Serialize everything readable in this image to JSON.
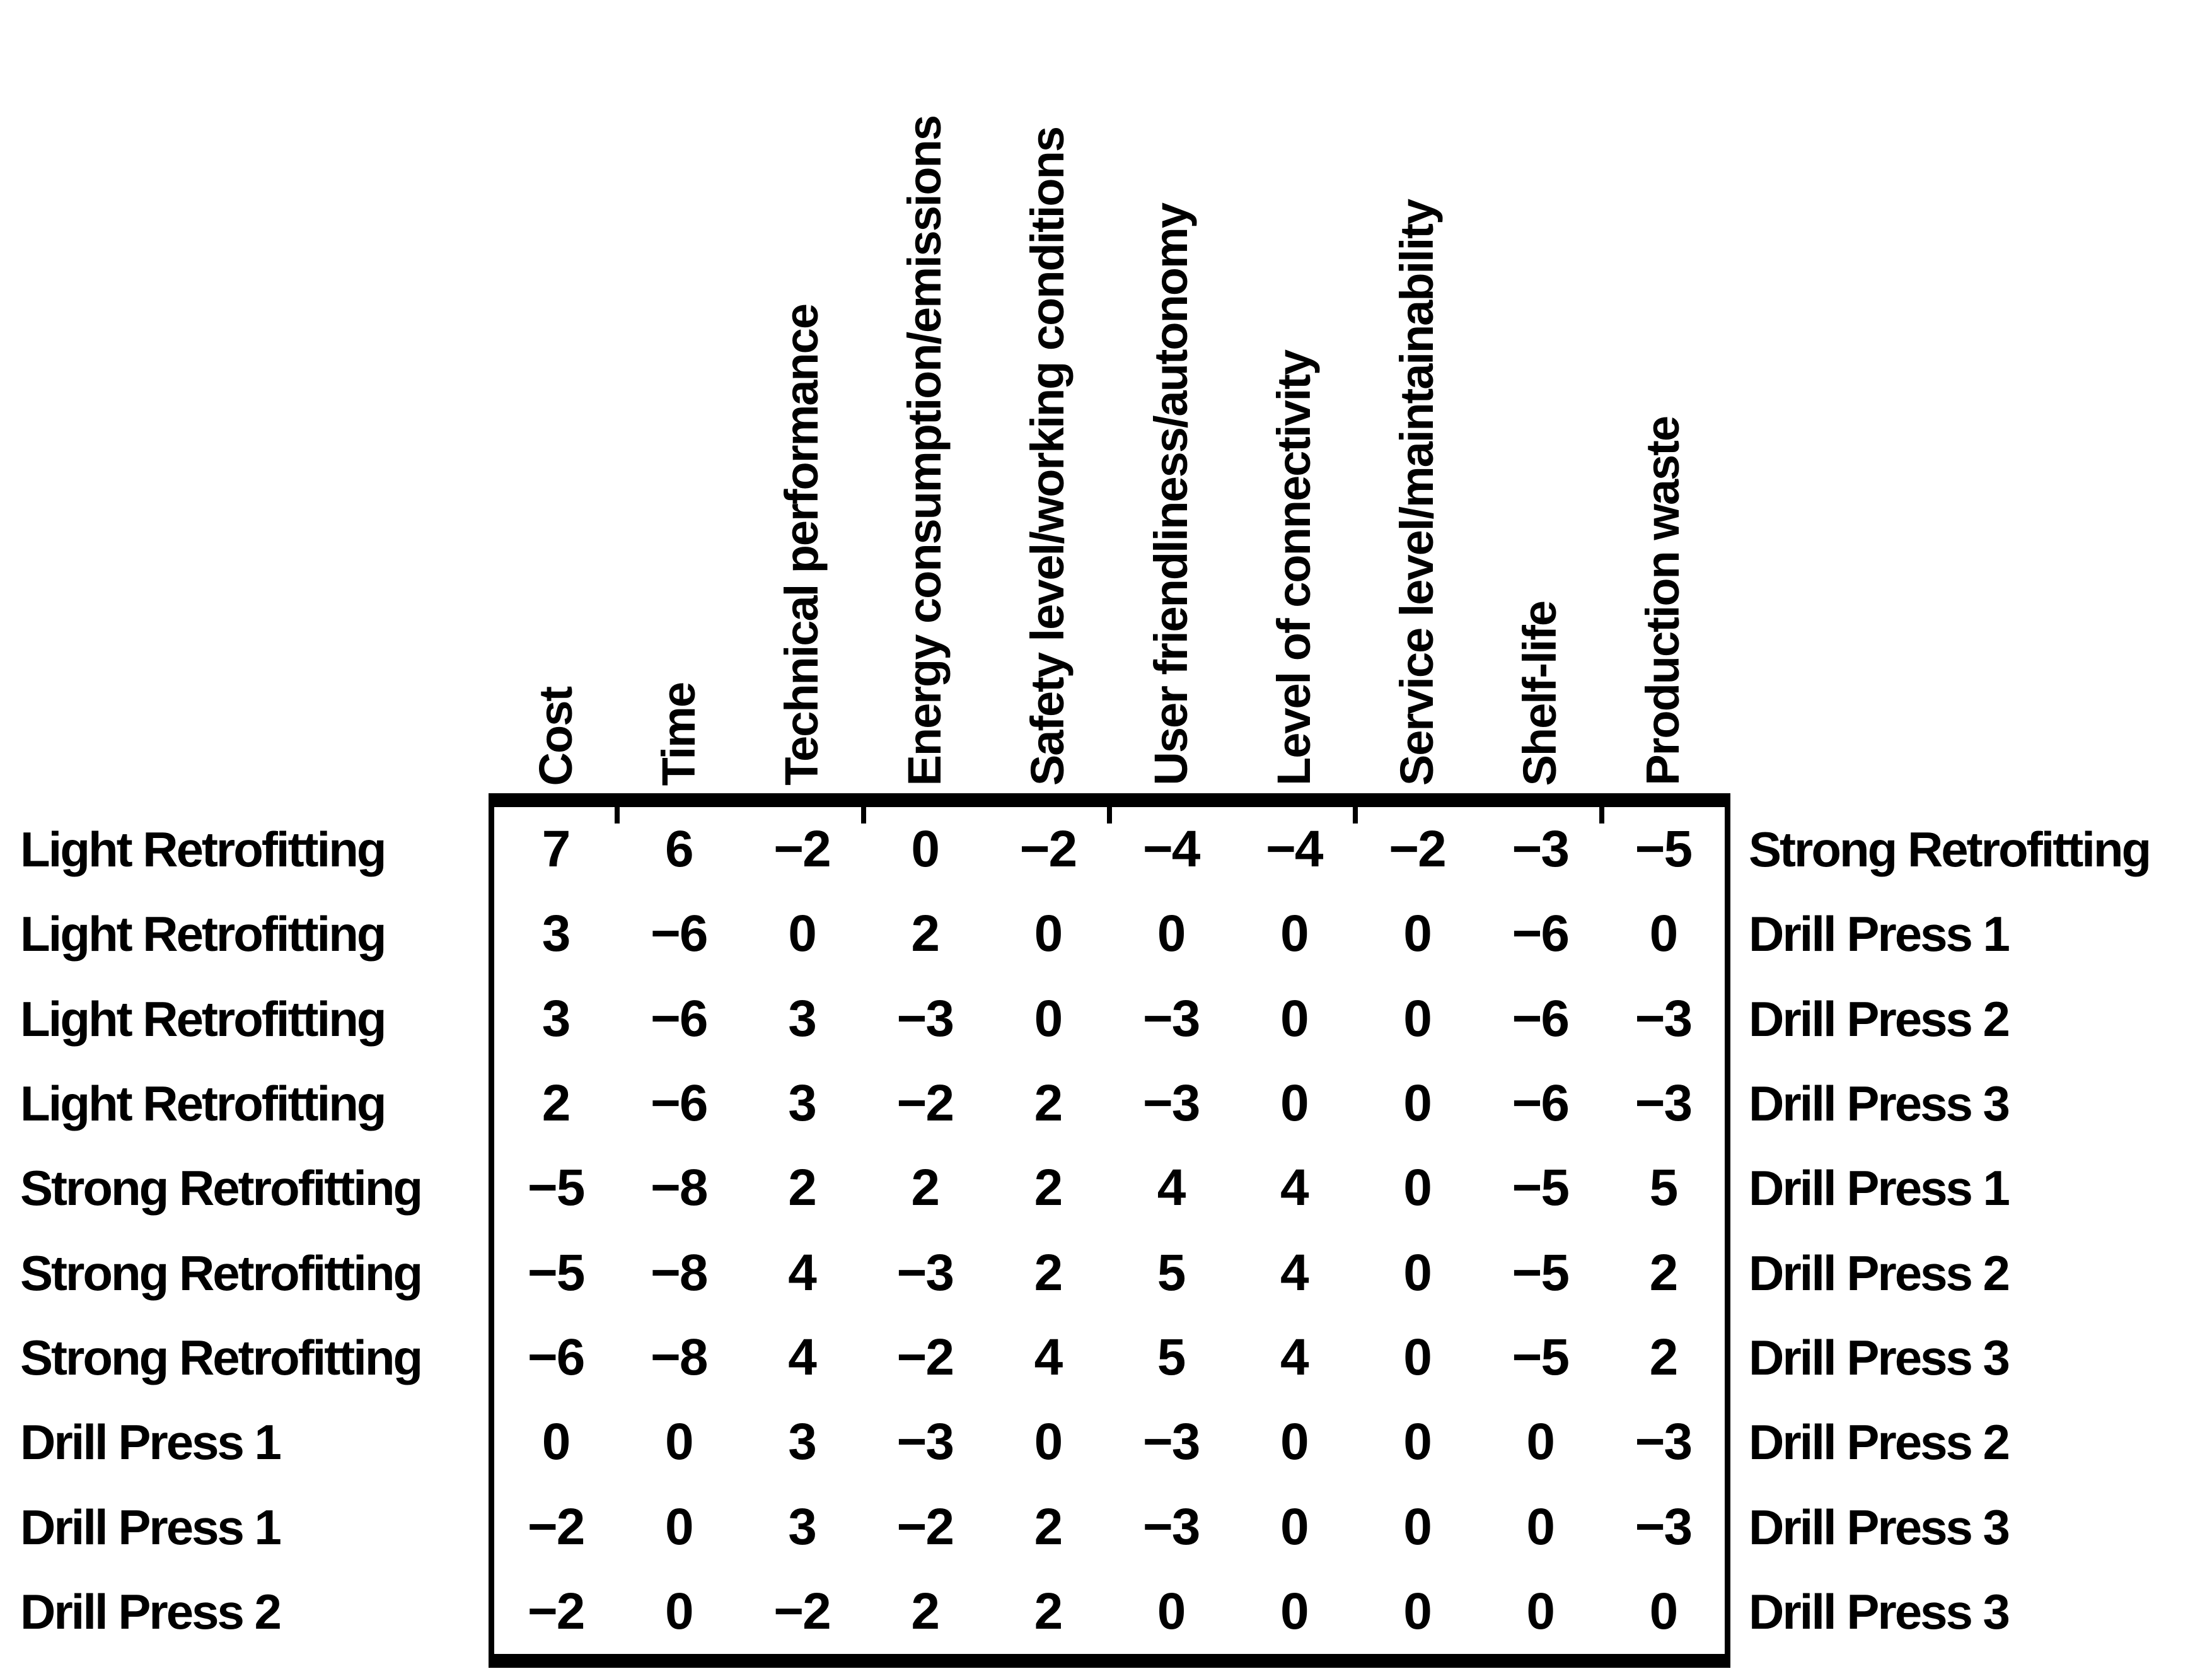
{
  "figure": {
    "description_label": "Difference-score matrix comparing retrofitting alternatives",
    "criteria": [
      "Cost",
      "Time",
      "Technical performance",
      "Energy consumption/emissions",
      "Safety level/working conditions",
      "User friendliness/autonomy",
      "Level of connectivity",
      "Service level/maintainability",
      "Shelf-life",
      "Production waste"
    ],
    "rows": [
      {
        "left": "Light Retrofitting",
        "values": [
          7,
          6,
          -2,
          0,
          -2,
          -4,
          -4,
          -2,
          -3,
          -5
        ],
        "right": "Strong Retrofitting"
      },
      {
        "left": "Light Retrofitting",
        "values": [
          3,
          -6,
          0,
          2,
          0,
          0,
          0,
          0,
          -6,
          0
        ],
        "right": "Drill Press 1"
      },
      {
        "left": "Light Retrofitting",
        "values": [
          3,
          -6,
          3,
          -3,
          0,
          -3,
          0,
          0,
          -6,
          -3
        ],
        "right": "Drill Press 2"
      },
      {
        "left": "Light Retrofitting",
        "values": [
          2,
          -6,
          3,
          -2,
          2,
          -3,
          0,
          0,
          -6,
          -3
        ],
        "right": "Drill Press 3"
      },
      {
        "left": "Strong Retrofitting",
        "values": [
          -5,
          -8,
          2,
          2,
          2,
          4,
          4,
          0,
          -5,
          5
        ],
        "right": "Drill Press 1"
      },
      {
        "left": "Strong Retrofitting",
        "values": [
          -5,
          -8,
          4,
          -3,
          2,
          5,
          4,
          0,
          -5,
          2
        ],
        "right": "Drill Press 2"
      },
      {
        "left": "Strong Retrofitting",
        "values": [
          -6,
          -8,
          4,
          -2,
          4,
          5,
          4,
          0,
          -5,
          2
        ],
        "right": "Drill Press 3"
      },
      {
        "left": "Drill Press 1",
        "values": [
          0,
          0,
          3,
          -3,
          0,
          -3,
          0,
          0,
          0,
          -3
        ],
        "right": "Drill Press 2"
      },
      {
        "left": "Drill Press 1",
        "values": [
          -2,
          0,
          3,
          -2,
          2,
          -3,
          0,
          0,
          0,
          -3
        ],
        "right": "Drill Press 3"
      },
      {
        "left": "Drill Press 2",
        "values": [
          -2,
          0,
          -2,
          2,
          2,
          0,
          0,
          0,
          0,
          0
        ],
        "right": "Drill Press 3"
      }
    ],
    "style": {
      "ink_color": "#000000",
      "background_color": "#ffffff",
      "minus_glyph": "−",
      "tick_boundaries_after_columns": [
        1,
        3,
        5,
        7,
        9
      ]
    }
  },
  "chart_data": {
    "type": "table",
    "title": "",
    "columns": [
      "Cost",
      "Time",
      "Technical performance",
      "Energy consumption/emissions",
      "Safety level/working conditions",
      "User friendliness/autonomy",
      "Level of connectivity",
      "Service level/maintainability",
      "Shelf-life",
      "Production waste"
    ],
    "row_pairs": [
      [
        "Light Retrofitting",
        "Strong Retrofitting"
      ],
      [
        "Light Retrofitting",
        "Drill Press 1"
      ],
      [
        "Light Retrofitting",
        "Drill Press 2"
      ],
      [
        "Light Retrofitting",
        "Drill Press 3"
      ],
      [
        "Strong Retrofitting",
        "Drill Press 1"
      ],
      [
        "Strong Retrofitting",
        "Drill Press 2"
      ],
      [
        "Strong Retrofitting",
        "Drill Press 3"
      ],
      [
        "Drill Press 1",
        "Drill Press 2"
      ],
      [
        "Drill Press 1",
        "Drill Press 3"
      ],
      [
        "Drill Press 2",
        "Drill Press 3"
      ]
    ],
    "values": [
      [
        7,
        6,
        -2,
        0,
        -2,
        -4,
        -4,
        -2,
        -3,
        -5
      ],
      [
        3,
        -6,
        0,
        2,
        0,
        0,
        0,
        0,
        -6,
        0
      ],
      [
        3,
        -6,
        3,
        -3,
        0,
        -3,
        0,
        0,
        -6,
        -3
      ],
      [
        2,
        -6,
        3,
        -2,
        2,
        -3,
        0,
        0,
        -6,
        -3
      ],
      [
        -5,
        -8,
        2,
        2,
        2,
        4,
        4,
        0,
        -5,
        5
      ],
      [
        -5,
        -8,
        4,
        -3,
        2,
        5,
        4,
        0,
        -5,
        2
      ],
      [
        -6,
        -8,
        4,
        -2,
        4,
        5,
        4,
        0,
        -5,
        2
      ],
      [
        0,
        0,
        3,
        -3,
        0,
        -3,
        0,
        0,
        0,
        -3
      ],
      [
        -2,
        0,
        3,
        -2,
        2,
        -3,
        0,
        0,
        0,
        -3
      ],
      [
        -2,
        0,
        -2,
        2,
        2,
        0,
        0,
        0,
        0,
        0
      ]
    ]
  }
}
